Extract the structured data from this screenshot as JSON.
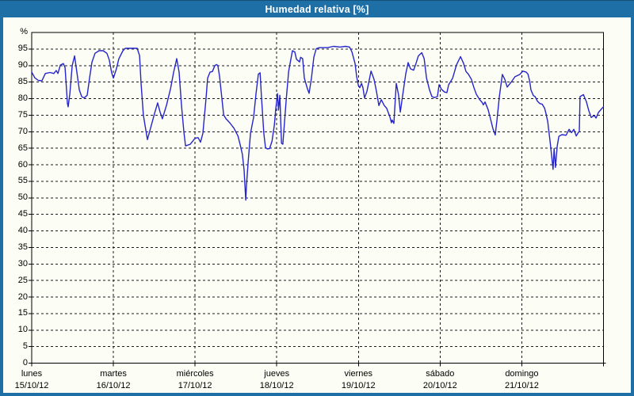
{
  "window": {
    "title": "Humedad relativa [%]",
    "title_bg": "#1e6fa6",
    "title_color": "#ffffff"
  },
  "chart_data": {
    "type": "line",
    "title": "Humedad relativa [%]",
    "xlabel": "",
    "ylabel": "%",
    "xlim": [
      0,
      168
    ],
    "ylim": [
      0,
      100
    ],
    "x_unit": "hours from Monday 00:00",
    "grid": true,
    "legend": "none",
    "line_color": "#2525cb",
    "yticks": [
      0,
      5,
      10,
      15,
      20,
      25,
      30,
      35,
      40,
      45,
      50,
      55,
      60,
      65,
      70,
      75,
      80,
      85,
      90,
      95
    ],
    "days": [
      {
        "name": "lunes",
        "date": "15/10/12"
      },
      {
        "name": "martes",
        "date": "16/10/12"
      },
      {
        "name": "miércoles",
        "date": "17/10/12"
      },
      {
        "name": "jueves",
        "date": "18/10/12"
      },
      {
        "name": "viernes",
        "date": "19/10/12"
      },
      {
        "name": "sábado",
        "date": "20/10/12"
      },
      {
        "name": "domingo",
        "date": "21/10/12"
      }
    ],
    "series": [
      {
        "name": "Humedad relativa [%]",
        "points": [
          [
            0,
            88
          ],
          [
            0.9,
            86.3
          ],
          [
            1.9,
            85.5
          ],
          [
            3,
            85.4
          ],
          [
            4,
            87.6
          ],
          [
            5.4,
            87.9
          ],
          [
            6.5,
            87.6
          ],
          [
            7.2,
            88.5
          ],
          [
            7.7,
            87.6
          ],
          [
            8.4,
            90.1
          ],
          [
            9.3,
            90.6
          ],
          [
            9.8,
            89.4
          ],
          [
            10.5,
            78.5
          ],
          [
            10.7,
            77.5
          ],
          [
            11.2,
            81.4
          ],
          [
            11.9,
            90
          ],
          [
            12.6,
            92.9
          ],
          [
            13.3,
            87.8
          ],
          [
            14,
            82.6
          ],
          [
            14.7,
            80.6
          ],
          [
            15.4,
            80.2
          ],
          [
            16.3,
            81
          ],
          [
            17,
            86.2
          ],
          [
            17.7,
            91
          ],
          [
            18.6,
            93.7
          ],
          [
            19.8,
            94.5
          ],
          [
            21,
            94.5
          ],
          [
            22.1,
            93.7
          ],
          [
            22.8,
            91.7
          ],
          [
            23.5,
            87.8
          ],
          [
            24,
            86.2
          ],
          [
            24.9,
            89
          ],
          [
            25.6,
            92
          ],
          [
            26.8,
            94.5
          ],
          [
            27.5,
            95.2
          ],
          [
            31,
            95.2
          ],
          [
            31.7,
            93
          ],
          [
            32.1,
            85
          ],
          [
            32.8,
            75
          ],
          [
            34,
            67.6
          ],
          [
            34.9,
            71
          ],
          [
            36.1,
            75.5
          ],
          [
            37,
            78.7
          ],
          [
            37.7,
            76
          ],
          [
            38.4,
            73.9
          ],
          [
            39.6,
            78
          ],
          [
            40.8,
            83
          ],
          [
            41.7,
            88
          ],
          [
            42.6,
            92.1
          ],
          [
            43.3,
            88
          ],
          [
            44,
            78
          ],
          [
            44.7,
            70
          ],
          [
            45.2,
            65.7
          ],
          [
            46.6,
            66.2
          ],
          [
            48,
            68
          ],
          [
            48.9,
            68.2
          ],
          [
            49.6,
            66.8
          ],
          [
            50.3,
            69.5
          ],
          [
            51.2,
            79.8
          ],
          [
            51.7,
            86.2
          ],
          [
            52.4,
            88
          ],
          [
            53.1,
            88.2
          ],
          [
            53.8,
            90
          ],
          [
            54.3,
            90.3
          ],
          [
            54.7,
            90
          ],
          [
            55.2,
            86.6
          ],
          [
            55.9,
            79.8
          ],
          [
            56.4,
            75.1
          ],
          [
            57.1,
            73.9
          ],
          [
            58.2,
            72.7
          ],
          [
            59.4,
            71.1
          ],
          [
            60.6,
            68.7
          ],
          [
            61.2,
            66.3
          ],
          [
            61.9,
            63.2
          ],
          [
            62.4,
            58.4
          ],
          [
            62.9,
            49.3
          ],
          [
            63.1,
            53.7
          ],
          [
            63.6,
            60.8
          ],
          [
            64.3,
            69.5
          ],
          [
            65.2,
            74.3
          ],
          [
            65.9,
            81.4
          ],
          [
            66.6,
            87.4
          ],
          [
            67.1,
            87.8
          ],
          [
            67.5,
            80.6
          ],
          [
            68.2,
            69.5
          ],
          [
            68.7,
            65.2
          ],
          [
            69.2,
            64.8
          ],
          [
            69.9,
            64.9
          ],
          [
            70.6,
            67.1
          ],
          [
            71.3,
            72
          ],
          [
            71.7,
            76.7
          ],
          [
            72.2,
            81.5
          ],
          [
            72.5,
            76.5
          ],
          [
            72.9,
            81
          ],
          [
            73.4,
            66.5
          ],
          [
            73.8,
            66.2
          ],
          [
            74.8,
            79.8
          ],
          [
            75.5,
            88.2
          ],
          [
            76.6,
            94.5
          ],
          [
            77.3,
            94.1
          ],
          [
            77.8,
            91.9
          ],
          [
            78.7,
            91.1
          ],
          [
            79,
            92.5
          ],
          [
            79.6,
            92.1
          ],
          [
            80.1,
            86.2
          ],
          [
            81,
            83
          ],
          [
            81.5,
            81.6
          ],
          [
            82.2,
            86.2
          ],
          [
            82.9,
            92.5
          ],
          [
            83.6,
            95.1
          ],
          [
            84.5,
            95.4
          ],
          [
            86.9,
            95.4
          ],
          [
            88.7,
            95.8
          ],
          [
            90.6,
            95.6
          ],
          [
            92.2,
            95.8
          ],
          [
            93.4,
            95.6
          ],
          [
            94.1,
            94.1
          ],
          [
            95,
            90.6
          ],
          [
            95.5,
            86.6
          ],
          [
            96,
            83.9
          ],
          [
            96.4,
            83.3
          ],
          [
            96.9,
            84.6
          ],
          [
            97.3,
            83.4
          ],
          [
            97.8,
            80.2
          ],
          [
            98.5,
            82.2
          ],
          [
            99.7,
            88.3
          ],
          [
            100.6,
            85.8
          ],
          [
            101.3,
            82.2
          ],
          [
            102,
            77.9
          ],
          [
            102.7,
            79.7
          ],
          [
            103.6,
            77.9
          ],
          [
            104.3,
            77.1
          ],
          [
            105.3,
            74.3
          ],
          [
            105.7,
            72.7
          ],
          [
            105.9,
            73.5
          ],
          [
            106.4,
            72.5
          ],
          [
            107.1,
            84.6
          ],
          [
            107.8,
            81
          ],
          [
            108.3,
            75.9
          ],
          [
            109,
            81
          ],
          [
            109.9,
            87.5
          ],
          [
            110.6,
            90.9
          ],
          [
            111.3,
            89
          ],
          [
            112.2,
            88.6
          ],
          [
            112.9,
            90.6
          ],
          [
            113.6,
            92.9
          ],
          [
            114.6,
            93.9
          ],
          [
            115.3,
            92.1
          ],
          [
            116,
            86.2
          ],
          [
            116.9,
            82.6
          ],
          [
            117.6,
            80.6
          ],
          [
            118.3,
            80.3
          ],
          [
            119.2,
            80.6
          ],
          [
            119.7,
            84.2
          ],
          [
            120.4,
            82.8
          ],
          [
            121.3,
            82
          ],
          [
            122,
            81.8
          ],
          [
            122.5,
            84.2
          ],
          [
            123.7,
            86.2
          ],
          [
            124.8,
            90.2
          ],
          [
            126,
            92.7
          ],
          [
            126.9,
            90.6
          ],
          [
            127.6,
            88.2
          ],
          [
            128.3,
            87.4
          ],
          [
            129.2,
            85.8
          ],
          [
            129.9,
            83.4
          ],
          [
            130.6,
            81.4
          ],
          [
            131.6,
            79.7
          ],
          [
            132.3,
            78.9
          ],
          [
            132.7,
            78.1
          ],
          [
            133.2,
            79
          ],
          [
            134.1,
            76.7
          ],
          [
            134.8,
            73.9
          ],
          [
            135.5,
            71
          ],
          [
            136.2,
            69
          ],
          [
            136.7,
            73.5
          ],
          [
            137.4,
            80.6
          ],
          [
            138.3,
            87.3
          ],
          [
            139,
            85.8
          ],
          [
            139.7,
            83.5
          ],
          [
            140.9,
            85
          ],
          [
            142,
            86.6
          ],
          [
            143.4,
            87.3
          ],
          [
            144.3,
            88.3
          ],
          [
            145.3,
            88
          ],
          [
            145.8,
            87.4
          ],
          [
            146.3,
            85.4
          ],
          [
            146.7,
            82.6
          ],
          [
            147.4,
            80.9
          ],
          [
            147.9,
            80.6
          ],
          [
            148.6,
            79.2
          ],
          [
            149.3,
            78.5
          ],
          [
            150,
            78.3
          ],
          [
            150.7,
            77.1
          ],
          [
            151.1,
            75.5
          ],
          [
            151.6,
            73.1
          ],
          [
            152.3,
            67.1
          ],
          [
            152.8,
            62.4
          ],
          [
            153.2,
            58.6
          ],
          [
            153.5,
            64.9
          ],
          [
            153.9,
            59.2
          ],
          [
            154.4,
            65.6
          ],
          [
            154.9,
            68.6
          ],
          [
            155.8,
            69.1
          ],
          [
            157,
            68.9
          ],
          [
            157.9,
            70.7
          ],
          [
            158.6,
            69.7
          ],
          [
            159.3,
            70.7
          ],
          [
            160,
            68.7
          ],
          [
            160.7,
            69.9
          ],
          [
            160.9,
            70
          ],
          [
            161.1,
            80.6
          ],
          [
            162.1,
            81.2
          ],
          [
            163,
            79
          ],
          [
            163.7,
            76.3
          ],
          [
            164.4,
            74.3
          ],
          [
            165.3,
            74.9
          ],
          [
            165.8,
            74.1
          ],
          [
            166.5,
            75.8
          ],
          [
            167.6,
            77.1
          ],
          [
            168,
            77.5
          ]
        ]
      }
    ]
  }
}
